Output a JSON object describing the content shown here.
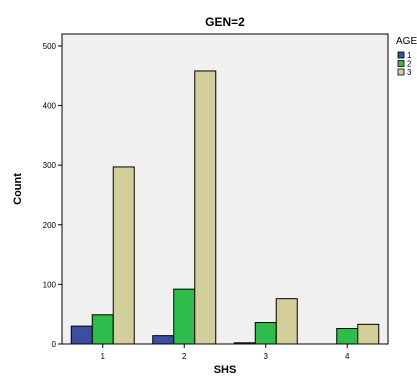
{
  "chart_data": {
    "type": "bar",
    "title": "GEN=2",
    "xlabel": "SHS",
    "ylabel": "Count",
    "categories": [
      "1",
      "2",
      "3",
      "4"
    ],
    "series": [
      {
        "name": "1",
        "values": [
          30,
          14,
          2,
          0
        ],
        "color": "#3a4fa0"
      },
      {
        "name": "2",
        "values": [
          49,
          92,
          36,
          26
        ],
        "color": "#2ebd4b"
      },
      {
        "name": "3",
        "values": [
          297,
          458,
          76,
          33
        ],
        "color": "#d3cf9a"
      }
    ],
    "ylim": [
      0,
      520
    ],
    "yticks": [
      0,
      100,
      200,
      300,
      400,
      500
    ],
    "legend_title": "AGE",
    "legend_position": "right",
    "grid": false,
    "plot_background": "#f0f0f0"
  }
}
